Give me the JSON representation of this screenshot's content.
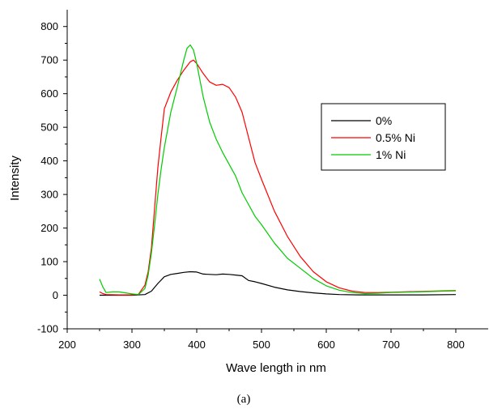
{
  "chart_data": {
    "type": "line",
    "xlabel": "Wave length in nm",
    "ylabel": "Intensity",
    "caption": "(a)",
    "xlim": [
      200,
      850
    ],
    "ylim": [
      -100,
      850
    ],
    "x_ticks": [
      200,
      300,
      400,
      500,
      600,
      700,
      800
    ],
    "y_ticks": [
      -100,
      0,
      100,
      200,
      300,
      400,
      500,
      600,
      700,
      800
    ],
    "grid": false,
    "legend_position": "top-right",
    "series": [
      {
        "name": "0%",
        "color": "#000000",
        "x": [
          250,
          300,
          320,
          330,
          340,
          350,
          360,
          370,
          380,
          390,
          400,
          410,
          420,
          430,
          440,
          450,
          460,
          470,
          480,
          490,
          500,
          520,
          540,
          560,
          580,
          600,
          620,
          650,
          700,
          750,
          800
        ],
        "y": [
          0,
          0,
          2,
          12,
          35,
          55,
          62,
          65,
          68,
          70,
          69,
          63,
          62,
          61,
          63,
          62,
          60,
          58,
          44,
          40,
          35,
          24,
          16,
          11,
          7,
          4,
          2,
          1,
          1,
          1,
          2
        ]
      },
      {
        "name": "0.5% Ni",
        "color": "#ff0000",
        "x": [
          250,
          255,
          260,
          280,
          300,
          310,
          320,
          325,
          330,
          335,
          340,
          345,
          350,
          360,
          370,
          380,
          390,
          395,
          400,
          410,
          420,
          430,
          440,
          450,
          460,
          470,
          480,
          490,
          500,
          520,
          540,
          560,
          580,
          600,
          620,
          640,
          660,
          680,
          700,
          740,
          780,
          800
        ],
        "y": [
          10,
          5,
          2,
          1,
          1,
          3,
          30,
          70,
          140,
          260,
          380,
          470,
          555,
          605,
          640,
          670,
          695,
          700,
          690,
          660,
          635,
          625,
          628,
          618,
          590,
          545,
          470,
          395,
          345,
          250,
          175,
          115,
          70,
          40,
          22,
          12,
          8,
          8,
          9,
          11,
          13,
          14
        ]
      },
      {
        "name": "1% Ni",
        "color": "#00cc00",
        "x": [
          250,
          255,
          260,
          270,
          280,
          290,
          300,
          310,
          320,
          325,
          330,
          335,
          340,
          345,
          350,
          360,
          370,
          380,
          385,
          390,
          395,
          400,
          410,
          420,
          430,
          440,
          450,
          460,
          470,
          480,
          490,
          500,
          520,
          540,
          560,
          580,
          600,
          620,
          640,
          660,
          680,
          700,
          740,
          780,
          800
        ],
        "y": [
          48,
          25,
          8,
          10,
          10,
          7,
          4,
          2,
          20,
          60,
          125,
          210,
          300,
          375,
          440,
          545,
          620,
          700,
          735,
          745,
          730,
          690,
          590,
          515,
          465,
          425,
          390,
          355,
          305,
          270,
          235,
          210,
          155,
          110,
          80,
          50,
          28,
          15,
          8,
          5,
          6,
          8,
          10,
          12,
          13
        ]
      }
    ]
  }
}
